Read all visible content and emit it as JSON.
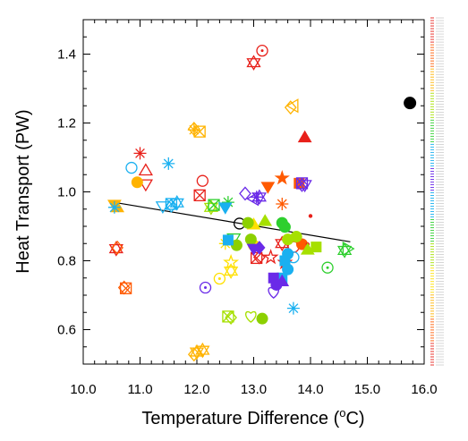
{
  "chart_data": {
    "type": "scatter",
    "xlabel_main": "Temperature Difference (",
    "xlabel_sup": "o",
    "xlabel_end": "C)",
    "ylabel": "Heat Transport (PW)",
    "xlim": [
      10.0,
      16.0
    ],
    "ylim": [
      0.5,
      1.5
    ],
    "x_ticks": [
      "10.0",
      "11.0",
      "12.0",
      "13.0",
      "14.0",
      "15.0",
      "16.0"
    ],
    "y_ticks": [
      "0.6",
      "0.8",
      "1.0",
      "1.2",
      "1.4"
    ],
    "grid": false,
    "regression_line": {
      "x": [
        10.6,
        14.7
      ],
      "y": [
        0.968,
        0.855
      ]
    },
    "points": [
      {
        "x": 15.75,
        "y": 1.258,
        "marker": "circle-filled",
        "color": "#000000"
      },
      {
        "x": 12.75,
        "y": 0.908,
        "marker": "circle-open",
        "color": "#000000"
      },
      {
        "x": 13.15,
        "y": 1.41,
        "marker": "circle-dot",
        "color": "#e8201a"
      },
      {
        "x": 13.0,
        "y": 1.375,
        "marker": "star6",
        "color": "#e8201a"
      },
      {
        "x": 13.9,
        "y": 1.158,
        "marker": "triangle-filled",
        "color": "#e8201a"
      },
      {
        "x": 11.0,
        "y": 1.112,
        "marker": "asterisk",
        "color": "#e8201a"
      },
      {
        "x": 11.1,
        "y": 1.062,
        "marker": "triangle-open",
        "color": "#e8201a"
      },
      {
        "x": 12.1,
        "y": 1.032,
        "marker": "circle-open",
        "color": "#e8201a"
      },
      {
        "x": 12.05,
        "y": 0.99,
        "marker": "square-x",
        "color": "#e8201a"
      },
      {
        "x": 13.5,
        "y": 1.04,
        "marker": "star5-filled",
        "color": "#ff5a00"
      },
      {
        "x": 13.25,
        "y": 1.015,
        "marker": "triangle-down-filled",
        "color": "#ff5a00"
      },
      {
        "x": 13.5,
        "y": 0.965,
        "marker": "asterisk",
        "color": "#ff5a00"
      },
      {
        "x": 13.8,
        "y": 1.025,
        "marker": "square-filled",
        "color": "#ff5a00"
      },
      {
        "x": 13.7,
        "y": 0.84,
        "marker": "circle-open",
        "color": "#e8201a"
      },
      {
        "x": 13.85,
        "y": 0.848,
        "marker": "circle-filled",
        "color": "#ff5a00"
      },
      {
        "x": 13.95,
        "y": 0.848,
        "marker": "dot",
        "color": "#e8201a"
      },
      {
        "x": 14.0,
        "y": 0.93,
        "marker": "dot",
        "color": "#e8201a"
      },
      {
        "x": 13.5,
        "y": 0.85,
        "marker": "star6",
        "color": "#e8201a"
      },
      {
        "x": 13.55,
        "y": 0.795,
        "marker": "star5-open",
        "color": "#e8201a"
      },
      {
        "x": 13.3,
        "y": 0.81,
        "marker": "star5-open",
        "color": "#e8201a"
      },
      {
        "x": 13.05,
        "y": 0.808,
        "marker": "square-x",
        "color": "#e8201a"
      },
      {
        "x": 13.1,
        "y": 0.81,
        "marker": "diamond-open",
        "color": "#e8201a"
      },
      {
        "x": 10.58,
        "y": 0.835,
        "marker": "star6",
        "color": "#e8201a"
      },
      {
        "x": 10.6,
        "y": 0.838,
        "marker": "diamond-open",
        "color": "#ff5a00"
      },
      {
        "x": 10.75,
        "y": 0.72,
        "marker": "square-x",
        "color": "#ff5a00"
      },
      {
        "x": 10.72,
        "y": 0.722,
        "marker": "diamond-open",
        "color": "#ff5a00"
      },
      {
        "x": 11.1,
        "y": 1.022,
        "marker": "triangle-down-open",
        "color": "#e8201a"
      },
      {
        "x": 10.95,
        "y": 1.028,
        "marker": "circle-filled",
        "color": "#ffb300"
      },
      {
        "x": 10.55,
        "y": 0.963,
        "marker": "triangle-down-filled",
        "color": "#ffb300"
      },
      {
        "x": 10.6,
        "y": 0.955,
        "marker": "triangle-filled",
        "color": "#ffb300"
      },
      {
        "x": 11.95,
        "y": 1.18,
        "marker": "asterisk",
        "color": "#ffb300"
      },
      {
        "x": 12.05,
        "y": 1.175,
        "marker": "square-x",
        "color": "#ffb300"
      },
      {
        "x": 11.95,
        "y": 1.183,
        "marker": "diamond-open",
        "color": "#ffb300"
      },
      {
        "x": 13.7,
        "y": 1.25,
        "marker": "triangle-left-open",
        "color": "#ffb300"
      },
      {
        "x": 13.65,
        "y": 1.245,
        "marker": "diamond-open",
        "color": "#ffb300"
      },
      {
        "x": 12.0,
        "y": 0.535,
        "marker": "star6",
        "color": "#ffb300"
      },
      {
        "x": 12.1,
        "y": 0.54,
        "marker": "star6",
        "color": "#ffb300"
      },
      {
        "x": 11.95,
        "y": 0.528,
        "marker": "diamond-open",
        "color": "#ffb300"
      },
      {
        "x": 12.6,
        "y": 0.77,
        "marker": "star6",
        "color": "#ffe000"
      },
      {
        "x": 12.4,
        "y": 0.748,
        "marker": "circle-dot",
        "color": "#ffe000"
      },
      {
        "x": 12.5,
        "y": 0.85,
        "marker": "asterisk",
        "color": "#ffe000"
      },
      {
        "x": 12.6,
        "y": 0.795,
        "marker": "star5-open",
        "color": "#ffe000"
      },
      {
        "x": 13.0,
        "y": 0.905,
        "marker": "triangle-filled",
        "color": "#ffe000"
      },
      {
        "x": 13.0,
        "y": 0.845,
        "marker": "circle-filled",
        "color": "#ffe000"
      },
      {
        "x": 12.55,
        "y": 0.638,
        "marker": "square-x",
        "color": "#a6e000"
      },
      {
        "x": 12.6,
        "y": 0.635,
        "marker": "diamond-open",
        "color": "#a6e000"
      },
      {
        "x": 12.95,
        "y": 0.64,
        "marker": "heart-open",
        "color": "#a6e000"
      },
      {
        "x": 13.15,
        "y": 0.632,
        "marker": "circle-filled",
        "color": "#8cd000"
      },
      {
        "x": 12.25,
        "y": 0.955,
        "marker": "star6",
        "color": "#a6e000"
      },
      {
        "x": 12.3,
        "y": 0.962,
        "marker": "square-x",
        "color": "#2ecf2e"
      },
      {
        "x": 12.55,
        "y": 0.97,
        "marker": "asterisk",
        "color": "#2ecf2e"
      },
      {
        "x": 12.65,
        "y": 0.865,
        "marker": "triangle-down-open",
        "color": "#2ecf2e"
      },
      {
        "x": 12.7,
        "y": 0.845,
        "marker": "circle-filled",
        "color": "#8cd000"
      },
      {
        "x": 12.9,
        "y": 0.91,
        "marker": "circle-filled",
        "color": "#8cd000"
      },
      {
        "x": 12.95,
        "y": 0.862,
        "marker": "circle-filled",
        "color": "#8cd000"
      },
      {
        "x": 13.2,
        "y": 0.915,
        "marker": "triangle-filled",
        "color": "#a6e000"
      },
      {
        "x": 13.5,
        "y": 0.91,
        "marker": "circle-filled",
        "color": "#2ecf2e"
      },
      {
        "x": 13.55,
        "y": 0.898,
        "marker": "circle-filled",
        "color": "#2ecf2e"
      },
      {
        "x": 13.6,
        "y": 0.862,
        "marker": "circle-filled",
        "color": "#a6e000"
      },
      {
        "x": 13.75,
        "y": 0.87,
        "marker": "circle-filled",
        "color": "#a6e000"
      },
      {
        "x": 14.1,
        "y": 0.84,
        "marker": "square-filled",
        "color": "#a6e000"
      },
      {
        "x": 13.95,
        "y": 0.832,
        "marker": "triangle-filled",
        "color": "#a6e000"
      },
      {
        "x": 14.3,
        "y": 0.78,
        "marker": "circle-dot",
        "color": "#2ecf2e"
      },
      {
        "x": 14.6,
        "y": 0.83,
        "marker": "star6",
        "color": "#2ecf2e"
      },
      {
        "x": 14.65,
        "y": 0.835,
        "marker": "triangle-right-open",
        "color": "#2ecf2e"
      },
      {
        "x": 10.55,
        "y": 0.955,
        "marker": "asterisk",
        "color": "#1ab0f0"
      },
      {
        "x": 10.85,
        "y": 1.07,
        "marker": "circle-open",
        "color": "#1ab0f0"
      },
      {
        "x": 11.5,
        "y": 1.082,
        "marker": "asterisk",
        "color": "#1ab0f0"
      },
      {
        "x": 11.4,
        "y": 0.958,
        "marker": "triangle-down-open",
        "color": "#1ab0f0"
      },
      {
        "x": 11.55,
        "y": 0.965,
        "marker": "square-x",
        "color": "#1ab0f0"
      },
      {
        "x": 11.65,
        "y": 0.968,
        "marker": "star6",
        "color": "#1ab0f0"
      },
      {
        "x": 11.55,
        "y": 0.96,
        "marker": "diamond-open",
        "color": "#1ab0f0"
      },
      {
        "x": 12.5,
        "y": 0.955,
        "marker": "triangle-down-filled",
        "color": "#1ab0f0"
      },
      {
        "x": 12.55,
        "y": 0.86,
        "marker": "square-filled",
        "color": "#1ab0f0"
      },
      {
        "x": 13.6,
        "y": 0.82,
        "marker": "circle-filled",
        "color": "#1ab0f0"
      },
      {
        "x": 13.55,
        "y": 0.8,
        "marker": "square-filled",
        "color": "#1ab0f0"
      },
      {
        "x": 13.6,
        "y": 0.775,
        "marker": "circle-filled",
        "color": "#1ab0f0"
      },
      {
        "x": 13.5,
        "y": 0.75,
        "marker": "square-filled",
        "color": "#1ab0f0"
      },
      {
        "x": 13.7,
        "y": 0.81,
        "marker": "circle-open",
        "color": "#1ab0f0"
      },
      {
        "x": 13.7,
        "y": 0.662,
        "marker": "asterisk",
        "color": "#1ab0f0"
      },
      {
        "x": 12.15,
        "y": 0.722,
        "marker": "circle-dot",
        "color": "#6a2ae8"
      },
      {
        "x": 13.05,
        "y": 0.985,
        "marker": "asterisk",
        "color": "#6a2ae8"
      },
      {
        "x": 12.85,
        "y": 0.995,
        "marker": "diamond-open",
        "color": "#6a2ae8"
      },
      {
        "x": 13.0,
        "y": 0.98,
        "marker": "triangle-left-open",
        "color": "#6a2ae8"
      },
      {
        "x": 13.1,
        "y": 0.985,
        "marker": "star6",
        "color": "#6a2ae8"
      },
      {
        "x": 13.85,
        "y": 1.025,
        "marker": "square-x",
        "color": "#6a2ae8"
      },
      {
        "x": 13.9,
        "y": 1.02,
        "marker": "triangle-down-open",
        "color": "#6a2ae8"
      },
      {
        "x": 13.85,
        "y": 1.02,
        "marker": "diamond-open",
        "color": "#6a2ae8"
      },
      {
        "x": 13.0,
        "y": 0.835,
        "marker": "triangle-down-filled",
        "color": "#6a2ae8"
      },
      {
        "x": 13.1,
        "y": 0.838,
        "marker": "diamond-filled",
        "color": "#6a2ae8"
      },
      {
        "x": 13.4,
        "y": 0.73,
        "marker": "circle-filled",
        "color": "#6a2ae8"
      },
      {
        "x": 13.5,
        "y": 0.74,
        "marker": "triangle-filled",
        "color": "#6a2ae8"
      },
      {
        "x": 13.35,
        "y": 0.75,
        "marker": "square-filled",
        "color": "#6a2ae8"
      },
      {
        "x": 13.35,
        "y": 0.71,
        "marker": "heart-open",
        "color": "#6a2ae8"
      }
    ]
  }
}
